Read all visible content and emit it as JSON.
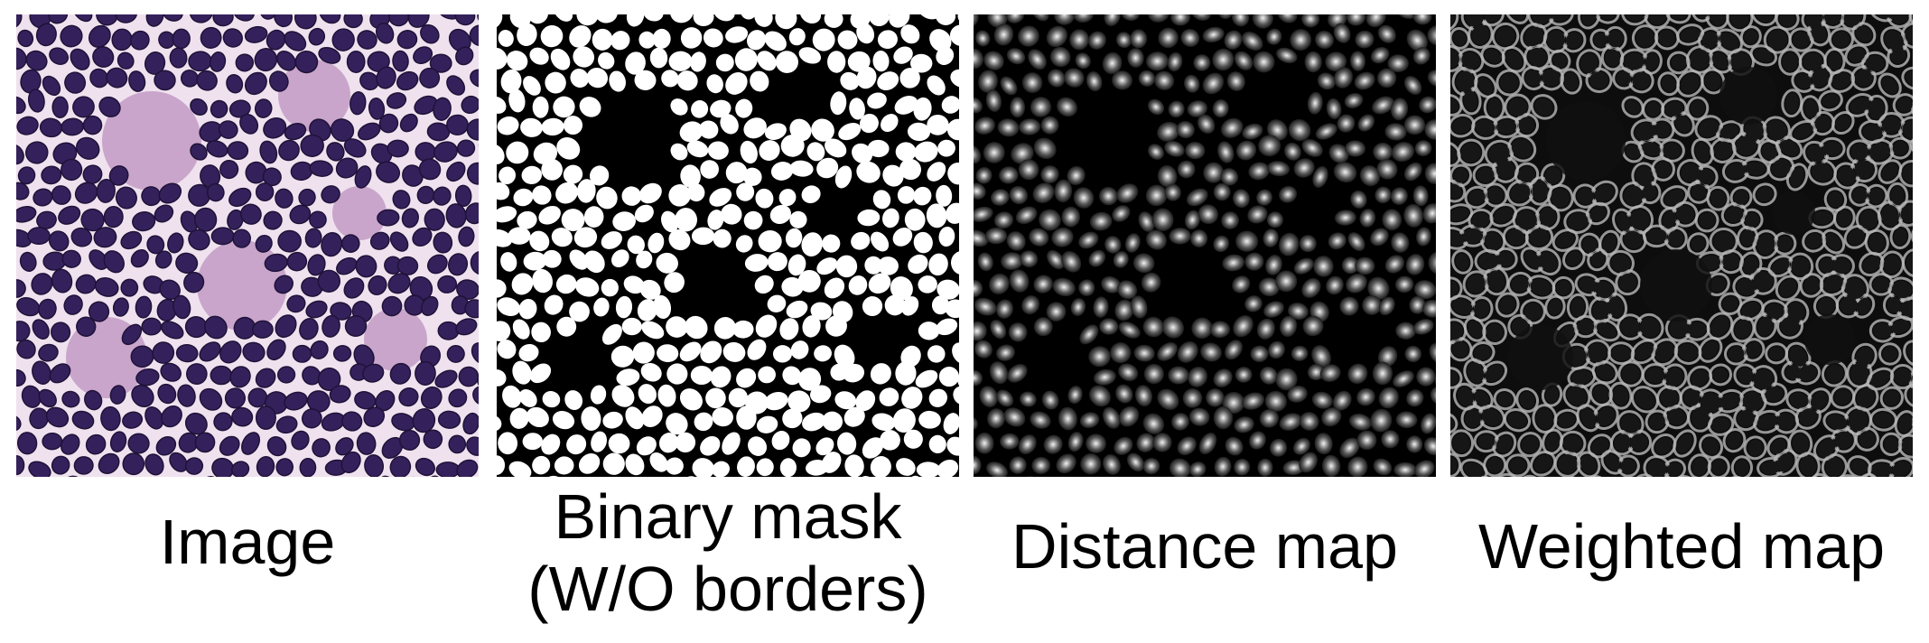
{
  "panels": [
    {
      "caption": "Image",
      "icon": "he-stained-histology-image",
      "colors": {
        "background": "#efe2ee",
        "stroma": "#b98cbc",
        "cell": "#34215c",
        "cell_rim": "#1f1238"
      }
    },
    {
      "caption": "Binary mask\n(W/O borders)",
      "icon": "binary-segmentation-mask",
      "colors": {
        "background": "#000000",
        "cell": "#ffffff"
      }
    },
    {
      "caption": "Distance map",
      "icon": "distance-transform-map",
      "colors": {
        "background": "#000000",
        "center": "#f2f2f2",
        "edge": "#1a1a1a"
      }
    },
    {
      "caption": "Weighted map",
      "icon": "border-weight-map",
      "colors": {
        "background": "#0d0d0d",
        "border": "#b9b9b9",
        "cell": "#161616"
      }
    }
  ]
}
